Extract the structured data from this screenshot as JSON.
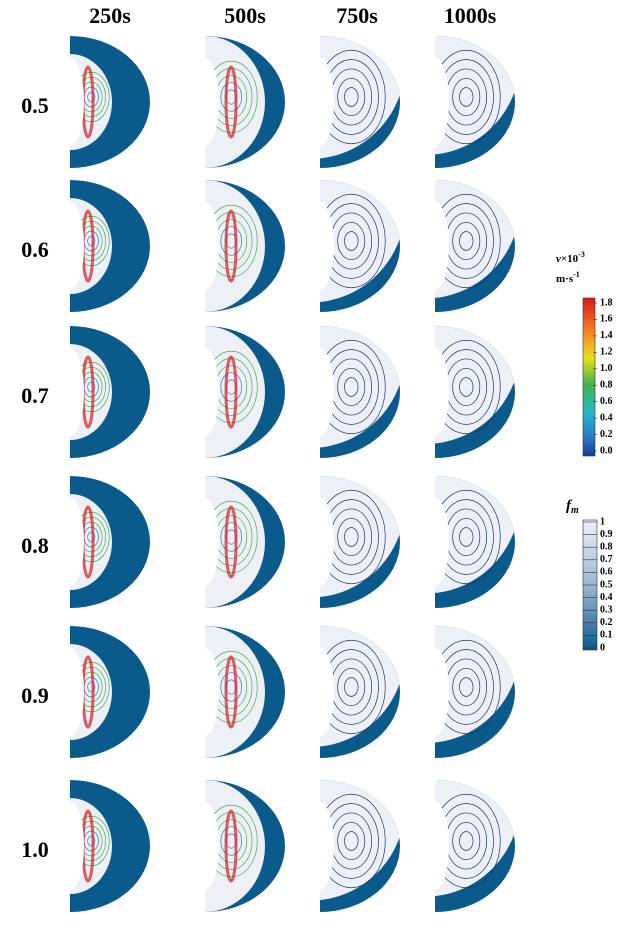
{
  "columns": [
    "250s",
    "500s",
    "750s",
    "1000s"
  ],
  "rows": [
    "0.5",
    "0.6",
    "0.7",
    "0.8",
    "0.9",
    "1.0"
  ],
  "velocity_legend": {
    "title": "v",
    "times": "×10",
    "exponent": "-3",
    "unit": "m·s",
    "unit_exponent": "-1",
    "ticks": [
      "1.8",
      "1.6",
      "1.4",
      "1.2",
      "1.0",
      "0.8",
      "0.6",
      "0.4",
      "0.2",
      "0.0"
    ]
  },
  "fraction_legend": {
    "title": "f",
    "subscript": "m",
    "ticks": [
      "1",
      "0.9",
      "0.8",
      "0.7",
      "0.6",
      "0.5",
      "0.4",
      "0.3",
      "0.2",
      "0.1",
      "0"
    ]
  }
}
